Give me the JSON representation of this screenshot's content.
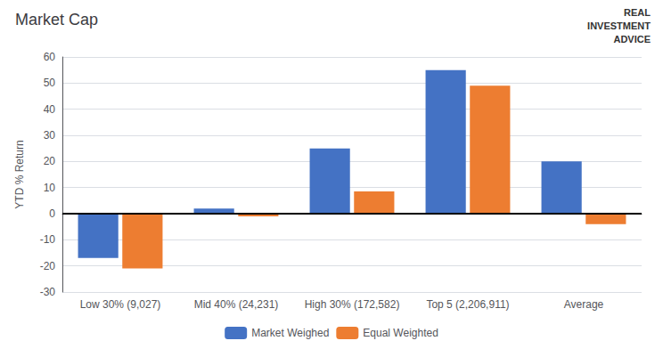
{
  "chart_data": {
    "type": "bar",
    "title": "Market Cap",
    "ylabel": "YTD % Return",
    "categories": [
      "Low 30% (9,027)",
      "Mid 40% (24,231)",
      "High 30% (172,582)",
      "Top 5 (2,206,911)",
      "Average"
    ],
    "series": [
      {
        "name": "Market Weighed",
        "color": "#4472C4",
        "values": [
          -17,
          2,
          25,
          55,
          20
        ]
      },
      {
        "name": "Equal Weighted",
        "color": "#ED7D31",
        "values": [
          -21,
          -1,
          8.5,
          49,
          -4
        ]
      }
    ],
    "ylim": [
      -30,
      60
    ],
    "yticks": [
      -30,
      -20,
      -10,
      0,
      10,
      20,
      30,
      40,
      50,
      60
    ],
    "grid": true,
    "legend": "bottom",
    "annotations": [
      "REAL",
      "INVESTMENT",
      "ADVICE"
    ]
  }
}
